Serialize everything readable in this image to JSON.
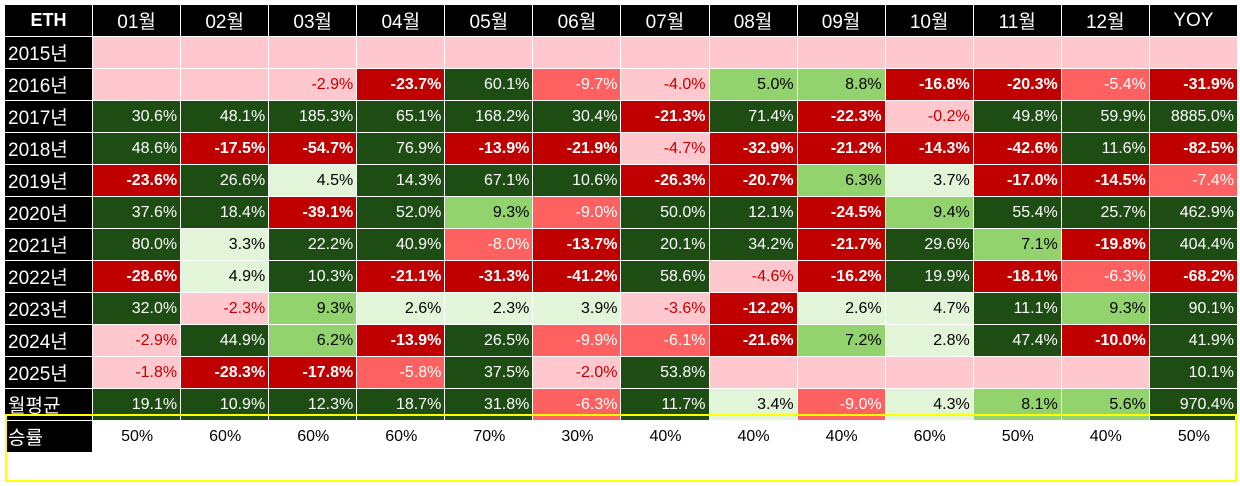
{
  "chart_data": {
    "type": "table",
    "corner_label": "ETH",
    "columns": [
      "01월",
      "02월",
      "03월",
      "04월",
      "05월",
      "06월",
      "07월",
      "08월",
      "09월",
      "10월",
      "11월",
      "12월",
      "YOY"
    ],
    "rows": [
      {
        "label": "2015년",
        "cells": [
          null,
          null,
          null,
          null,
          null,
          null,
          null,
          null,
          null,
          null,
          null,
          null,
          null
        ]
      },
      {
        "label": "2016년",
        "cells": [
          null,
          null,
          "-2.9%",
          "-23.7%",
          "60.1%",
          "-9.7%",
          "-4.0%",
          "5.0%",
          "8.8%",
          "-16.8%",
          "-20.3%",
          "-5.4%",
          "-31.9%"
        ]
      },
      {
        "label": "2017년",
        "cells": [
          "30.6%",
          "48.1%",
          "185.3%",
          "65.1%",
          "168.2%",
          "30.4%",
          "-21.3%",
          "71.4%",
          "-22.3%",
          "-0.2%",
          "49.8%",
          "59.9%",
          "8885.0%"
        ]
      },
      {
        "label": "2018년",
        "cells": [
          "48.6%",
          "-17.5%",
          "-54.7%",
          "76.9%",
          "-13.9%",
          "-21.9%",
          "-4.7%",
          "-32.9%",
          "-21.2%",
          "-14.3%",
          "-42.6%",
          "11.6%",
          "-82.5%"
        ]
      },
      {
        "label": "2019년",
        "cells": [
          "-23.6%",
          "26.6%",
          "4.5%",
          "14.3%",
          "67.1%",
          "10.6%",
          "-26.3%",
          "-20.7%",
          "6.3%",
          "3.7%",
          "-17.0%",
          "-14.5%",
          "-7.4%"
        ]
      },
      {
        "label": "2020년",
        "cells": [
          "37.6%",
          "18.4%",
          "-39.1%",
          "52.0%",
          "9.3%",
          "-9.0%",
          "50.0%",
          "12.1%",
          "-24.5%",
          "9.4%",
          "55.4%",
          "25.7%",
          "462.9%"
        ]
      },
      {
        "label": "2021년",
        "cells": [
          "80.0%",
          "3.3%",
          "22.2%",
          "40.9%",
          "-8.0%",
          "-13.7%",
          "20.1%",
          "34.2%",
          "-21.7%",
          "29.6%",
          "7.1%",
          "-19.8%",
          "404.4%"
        ]
      },
      {
        "label": "2022년",
        "cells": [
          "-28.6%",
          "4.9%",
          "10.3%",
          "-21.1%",
          "-31.3%",
          "-41.2%",
          "58.6%",
          "-4.6%",
          "-16.2%",
          "19.9%",
          "-18.1%",
          "-6.3%",
          "-68.2%"
        ]
      },
      {
        "label": "2023년",
        "cells": [
          "32.0%",
          "-2.3%",
          "9.3%",
          "2.6%",
          "2.3%",
          "3.9%",
          "-3.6%",
          "-12.2%",
          "2.6%",
          "4.7%",
          "11.1%",
          "9.3%",
          "90.1%"
        ]
      },
      {
        "label": "2024년",
        "cells": [
          "-2.9%",
          "44.9%",
          "6.2%",
          "-13.9%",
          "26.5%",
          "-9.9%",
          "-6.1%",
          "-21.6%",
          "7.2%",
          "2.8%",
          "47.4%",
          "-10.0%",
          "41.9%"
        ]
      },
      {
        "label": "2025년",
        "cells": [
          "-1.8%",
          "-28.3%",
          "-17.8%",
          "-5.8%",
          "37.5%",
          "-2.0%",
          "53.8%",
          null,
          null,
          null,
          null,
          null,
          "10.1%"
        ]
      },
      {
        "label": "월평균",
        "cells": [
          "19.1%",
          "10.9%",
          "12.3%",
          "18.7%",
          "31.8%",
          "-6.3%",
          "11.7%",
          "3.4%",
          "-9.0%",
          "4.3%",
          "8.1%",
          "5.6%",
          "970.4%"
        ]
      },
      {
        "label": "승률",
        "cells": [
          "50%",
          "60%",
          "60%",
          "60%",
          "70%",
          "30%",
          "40%",
          "40%",
          "40%",
          "60%",
          "50%",
          "40%",
          "50%"
        ]
      }
    ],
    "colors": {
      "header_bg": "#000000",
      "header_text": "#ffffff",
      "empty": "#ffc7ce",
      "pos_strong": "#1e4d14",
      "pos_mid": "#92d36e",
      "pos_light": "#e3f5d8",
      "neg_strong": "#c00000",
      "neg_mid": "#ff6060",
      "neg_light": "#ffc7ce",
      "highlight_border": "#ffff00"
    }
  }
}
